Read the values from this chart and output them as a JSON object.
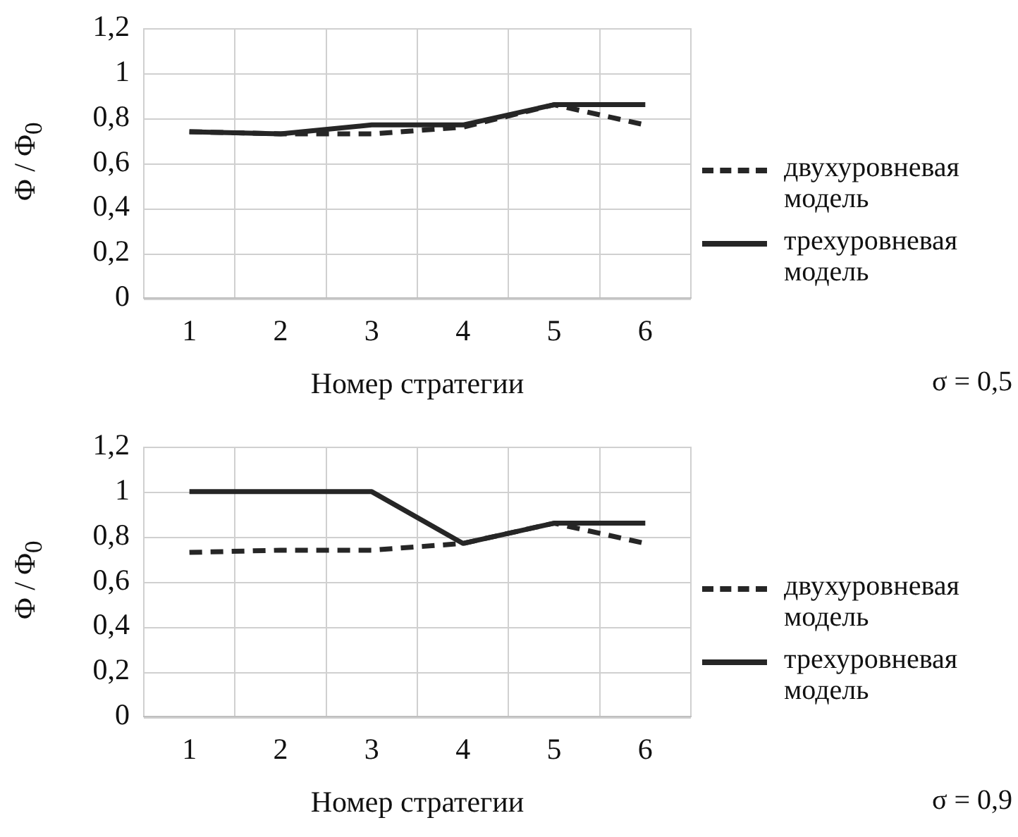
{
  "chart_data": [
    {
      "type": "line",
      "xlabel": "Номер стратегии",
      "ylabel": "Φ / Φ$_{0}$",
      "categories": [
        "1",
        "2",
        "3",
        "4",
        "5",
        "6"
      ],
      "series": [
        {
          "name": "двухуровневая модель",
          "color": "#262626",
          "line_style": "dashed",
          "values": [
            0.74,
            0.73,
            0.73,
            0.76,
            0.86,
            0.77
          ]
        },
        {
          "name": "трехуровневая модель",
          "color": "#262626",
          "line_style": "solid",
          "values": [
            0.74,
            0.73,
            0.77,
            0.77,
            0.86,
            0.86
          ]
        }
      ],
      "ylim": [
        0,
        1.2
      ],
      "yticks": [
        {
          "value": 0,
          "label": "0"
        },
        {
          "value": 0.2,
          "label": "0,2"
        },
        {
          "value": 0.4,
          "label": "0,4"
        },
        {
          "value": 0.6,
          "label": "0,6"
        },
        {
          "value": 0.8,
          "label": "0,8"
        },
        {
          "value": 1,
          "label": "1"
        },
        {
          "value": 1.2,
          "label": "1,2"
        }
      ],
      "grid": true,
      "legend": "right",
      "marker": "none",
      "annotations": [
        "σ = 0,5"
      ]
    },
    {
      "type": "line",
      "xlabel": "Номер стратегии",
      "ylabel": "Φ / Φ$_{0}$",
      "categories": [
        "1",
        "2",
        "3",
        "4",
        "5",
        "6"
      ],
      "series": [
        {
          "name": "двухуровневая модель",
          "color": "#262626",
          "line_style": "dashed",
          "values": [
            0.73,
            0.74,
            0.74,
            0.77,
            0.86,
            0.77
          ]
        },
        {
          "name": "трехуровневая модель",
          "color": "#262626",
          "line_style": "solid",
          "values": [
            1,
            1,
            1,
            0.77,
            0.86,
            0.86
          ]
        }
      ],
      "ylim": [
        0,
        1.2
      ],
      "yticks": [
        {
          "value": 0,
          "label": "0"
        },
        {
          "value": 0.2,
          "label": "0,2"
        },
        {
          "value": 0.4,
          "label": "0,4"
        },
        {
          "value": 0.6,
          "label": "0,6"
        },
        {
          "value": 0.8,
          "label": "0,8"
        },
        {
          "value": 1,
          "label": "1"
        },
        {
          "value": 1.2,
          "label": "1,2"
        }
      ],
      "grid": true,
      "legend": "right",
      "marker": "none",
      "annotations": [
        "σ = 0,9"
      ]
    }
  ]
}
